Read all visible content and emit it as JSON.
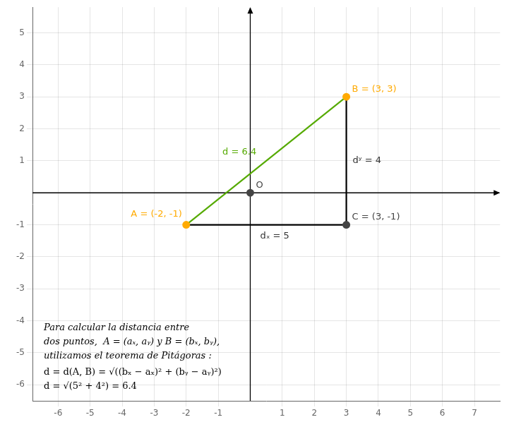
{
  "chart_data": {
    "type": "scatter",
    "xlim": [
      -6.8,
      7.8
    ],
    "ylim": [
      -6.5,
      5.8
    ],
    "xticks": [
      -6,
      -5,
      -4,
      -3,
      -2,
      -1,
      1,
      2,
      3,
      4,
      5,
      6,
      7
    ],
    "yticks": [
      -6,
      -5,
      -4,
      -3,
      -2,
      -1,
      1,
      2,
      3,
      4,
      5
    ],
    "grid": true,
    "series": [
      {
        "type": "line",
        "color": "#55aa00",
        "x": [
          -2,
          3
        ],
        "values": [
          -1,
          3
        ],
        "label": "d = 6.4"
      },
      {
        "type": "line",
        "color": "#000000",
        "x": [
          3,
          3
        ],
        "values": [
          3,
          -1
        ],
        "label": "dʸ = 4"
      },
      {
        "type": "line",
        "color": "#000000",
        "x": [
          -2,
          3
        ],
        "values": [
          -1,
          -1
        ],
        "label": "dₓ = 5"
      },
      {
        "type": "scatter",
        "color": "#ffaa00",
        "x": [
          -2,
          3
        ],
        "values": [
          -1,
          3
        ],
        "value_labels": [
          "A = (-2, -1)",
          "B = (3, 3)"
        ]
      },
      {
        "type": "scatter",
        "color": "#444444",
        "x": [
          3
        ],
        "values": [
          -1
        ],
        "value_labels": [
          "C = (3, -1)"
        ]
      },
      {
        "type": "scatter",
        "color": "#444444",
        "x": [
          0
        ],
        "values": [
          0
        ],
        "value_labels": [
          "O"
        ]
      }
    ],
    "annotations": [
      "Para calcular la distancia entre",
      "dos puntos,  A = (aₓ, aᵧ) y B = (bₓ, bᵧ),",
      "utilizamos el teorema de Pitágoras :",
      "d = d(A, B) = √((bₓ − aₓ)² + (bᵧ − aᵧ)²)",
      "d = √(5² + 4²) = 6.4"
    ]
  }
}
